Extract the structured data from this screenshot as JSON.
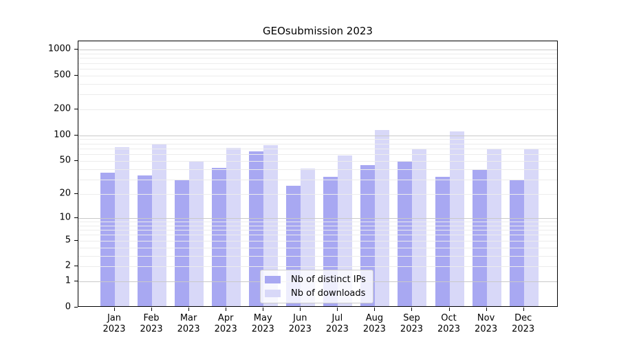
{
  "title": "GEOsubmission 2023",
  "chart_data": {
    "type": "bar",
    "title": "GEOsubmission 2023",
    "months": [
      "Jan",
      "Feb",
      "Mar",
      "Apr",
      "May",
      "Jun",
      "Jul",
      "Aug",
      "Sep",
      "Oct",
      "Nov",
      "Dec"
    ],
    "year_label": "2023",
    "series": [
      {
        "name": "Nb of distinct IPs",
        "color": "#a8a8f2",
        "values": [
          35,
          32,
          29,
          40,
          62,
          24,
          31,
          43,
          47,
          31,
          38,
          28
        ]
      },
      {
        "name": "Nb of downloads",
        "color": "#d8d8f8",
        "values": [
          70,
          75,
          47,
          68,
          74,
          39,
          56,
          112,
          66,
          107,
          66,
          66
        ]
      }
    ],
    "y_ticks": [
      0,
      1,
      2,
      5,
      10,
      20,
      50,
      100,
      200,
      500,
      1000
    ],
    "scale": "symlog-log1p",
    "ylim": [
      0,
      1254
    ],
    "grid": true,
    "legend_position": "lower center",
    "colors": {
      "major_grid": "#c9c9c9",
      "minor_grid": "#ececec",
      "spine": "#000000",
      "background": "#ffffff"
    }
  }
}
